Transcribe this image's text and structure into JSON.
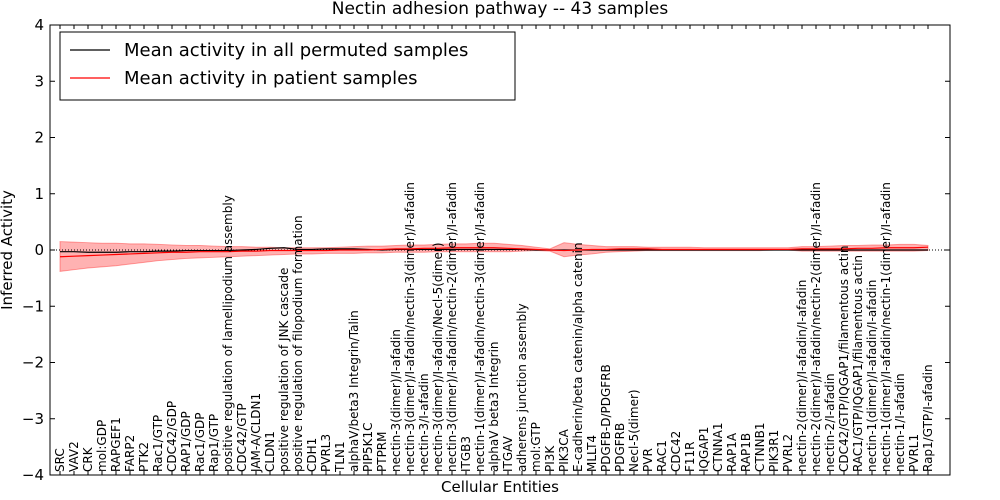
{
  "chart_data": {
    "type": "line",
    "title": "Nectin adhesion pathway -- 43 samples",
    "xlabel": "Cellular Entities",
    "ylabel": "Inferred Activity",
    "ylim": [
      -4,
      4
    ],
    "yticks": [
      -4,
      -3,
      -2,
      -1,
      0,
      1,
      2,
      3,
      4
    ],
    "ytick_labels": [
      "−4",
      "−3",
      "−2",
      "−1",
      "0",
      "1",
      "2",
      "3",
      "4"
    ],
    "legend": {
      "placement": "top-left",
      "entries": [
        {
          "label": "Mean activity in all permuted samples",
          "color": "#000000"
        },
        {
          "label": "Mean activity in patient samples",
          "color": "#ff0000"
        }
      ]
    },
    "categories": [
      "SRC",
      "VAV2",
      "CRK",
      "mol:GDP",
      "RAPGEF1",
      "FARP2",
      "PTK2",
      "Rac1/GTP",
      "CDC42/GDP",
      "RAP1/GDP",
      "Rac1/GDP",
      "Rap1/GTP",
      "positive regulation of lamellipodium assembly",
      "CDC42/GTP",
      "JAM-A/CLDN1",
      "CLDN1",
      "positive regulation of JNK cascade",
      "positive regulation of filopodium formation",
      "CDH1",
      "PVRL3",
      "TLN1",
      "alphaV/beta3 Integrin/Talin",
      "PIP5K1C",
      "PTPRM",
      "nectin-3(dimer)/I-afadin",
      "nectin-3(dimer)/I-afadin/nectin-3(dimer)/I-afadin",
      "nectin-3/I-afadin",
      "nectin-3(dimer)/I-afadin/Necl-5(dimer)",
      "nectin-3(dimer)/I-afadin/nectin-2(dimer)/I-afadin",
      "ITGB3",
      "nectin-1(dimer)/I-afadin/nectin-3(dimer)/I-afadin",
      "alphaV beta3 Integrin",
      "ITGAV",
      "adherens junction assembly",
      "mol:GTP",
      "PI3K",
      "PIK3CA",
      "E-cadherin/beta catenin/alpha catenin",
      "MLLT4",
      "PDGFB-D/PDGFRB",
      "PDGFRB",
      "Necl-5(dimer)",
      "PVR",
      "RAC1",
      "CDC42",
      "F11R",
      "IQGAP1",
      "CTNNA1",
      "RAP1A",
      "RAP1B",
      "CTNNB1",
      "PIK3R1",
      "PVRL2",
      "nectin-2(dimer)/I-afadin/I-afadin",
      "nectin-2(dimer)/I-afadin/nectin-2(dimer)/I-afadin",
      "nectin-2/I-afadin",
      "CDC42/GTP/IQGAP1/filamentous actin",
      "RAC1/GTP/IQGAP1/filamentous actin",
      "nectin-1(dimer)/I-afadin/I-afadin",
      "nectin-1(dimer)/I-afadin/nectin-1(dimer)/I-afadin",
      "nectin-1/I-afadin",
      "PVRL1",
      "Rap1/GTP/I-afadin"
    ],
    "series": [
      {
        "name": "Mean activity in all permuted samples",
        "color": "#000000",
        "values": [
          -0.03,
          -0.03,
          -0.04,
          -0.04,
          -0.04,
          -0.03,
          -0.03,
          -0.02,
          -0.02,
          -0.01,
          -0.01,
          -0.01,
          -0.01,
          0.0,
          0.01,
          0.03,
          0.04,
          0.01,
          0.01,
          0.02,
          0.02,
          0.02,
          0.01,
          0.0,
          0.01,
          0.01,
          0.01,
          0.01,
          0.01,
          0.01,
          0.01,
          0.01,
          0.01,
          0.01,
          0.0,
          0.0,
          0.0,
          0.0,
          0.0,
          0.0,
          0.0,
          0.0,
          0.0,
          0.0,
          0.0,
          0.0,
          0.0,
          0.0,
          0.0,
          0.0,
          0.0,
          0.0,
          0.0,
          0.0,
          0.0,
          0.0,
          0.0,
          0.0,
          0.0,
          0.0,
          0.0,
          0.0,
          0.0
        ]
      },
      {
        "name": "Mean activity in patient samples",
        "color": "#ff0000",
        "values": [
          -0.12,
          -0.11,
          -0.1,
          -0.09,
          -0.08,
          -0.07,
          -0.06,
          -0.05,
          -0.04,
          -0.04,
          -0.03,
          -0.03,
          -0.03,
          -0.02,
          -0.02,
          -0.01,
          -0.01,
          -0.01,
          -0.01,
          -0.01,
          0.0,
          0.0,
          0.0,
          0.01,
          0.02,
          0.02,
          0.03,
          0.03,
          0.04,
          0.04,
          0.04,
          0.04,
          0.03,
          0.02,
          0.01,
          0.0,
          -0.01,
          0.0,
          0.01,
          0.01,
          0.02,
          0.02,
          0.02,
          0.01,
          0.01,
          0.01,
          0.01,
          0.01,
          0.01,
          0.01,
          0.01,
          0.01,
          0.01,
          0.02,
          0.02,
          0.02,
          0.02,
          0.03,
          0.03,
          0.04,
          0.04,
          0.04,
          0.05
        ]
      }
    ],
    "band": {
      "name": "patient samples spread",
      "color": "#ff0000",
      "upper": [
        0.15,
        0.14,
        0.13,
        0.12,
        0.12,
        0.11,
        0.11,
        0.1,
        0.09,
        0.08,
        0.08,
        0.07,
        0.06,
        0.06,
        0.05,
        0.05,
        0.04,
        0.04,
        0.04,
        0.04,
        0.05,
        0.06,
        0.07,
        0.07,
        0.08,
        0.09,
        0.09,
        0.1,
        0.11,
        0.11,
        0.12,
        0.12,
        0.1,
        0.08,
        0.05,
        0.02,
        0.13,
        0.1,
        0.08,
        0.06,
        0.06,
        0.06,
        0.05,
        0.05,
        0.05,
        0.05,
        0.04,
        0.04,
        0.04,
        0.04,
        0.04,
        0.04,
        0.04,
        0.06,
        0.06,
        0.07,
        0.08,
        0.08,
        0.09,
        0.09,
        0.1,
        0.1,
        0.08
      ],
      "lower": [
        -0.38,
        -0.35,
        -0.32,
        -0.3,
        -0.28,
        -0.25,
        -0.22,
        -0.19,
        -0.17,
        -0.15,
        -0.14,
        -0.13,
        -0.12,
        -0.11,
        -0.1,
        -0.09,
        -0.08,
        -0.07,
        -0.07,
        -0.06,
        -0.06,
        -0.06,
        -0.05,
        -0.05,
        -0.04,
        -0.04,
        -0.04,
        -0.03,
        -0.03,
        -0.03,
        -0.03,
        -0.03,
        -0.03,
        -0.02,
        -0.01,
        -0.02,
        -0.12,
        -0.09,
        -0.07,
        -0.04,
        -0.03,
        -0.02,
        -0.01,
        -0.01,
        -0.01,
        -0.01,
        -0.01,
        -0.01,
        -0.01,
        -0.01,
        -0.01,
        0.0,
        0.0,
        -0.02,
        -0.02,
        -0.02,
        -0.02,
        -0.02,
        -0.02,
        -0.02,
        -0.02,
        -0.02,
        -0.01
      ]
    }
  }
}
